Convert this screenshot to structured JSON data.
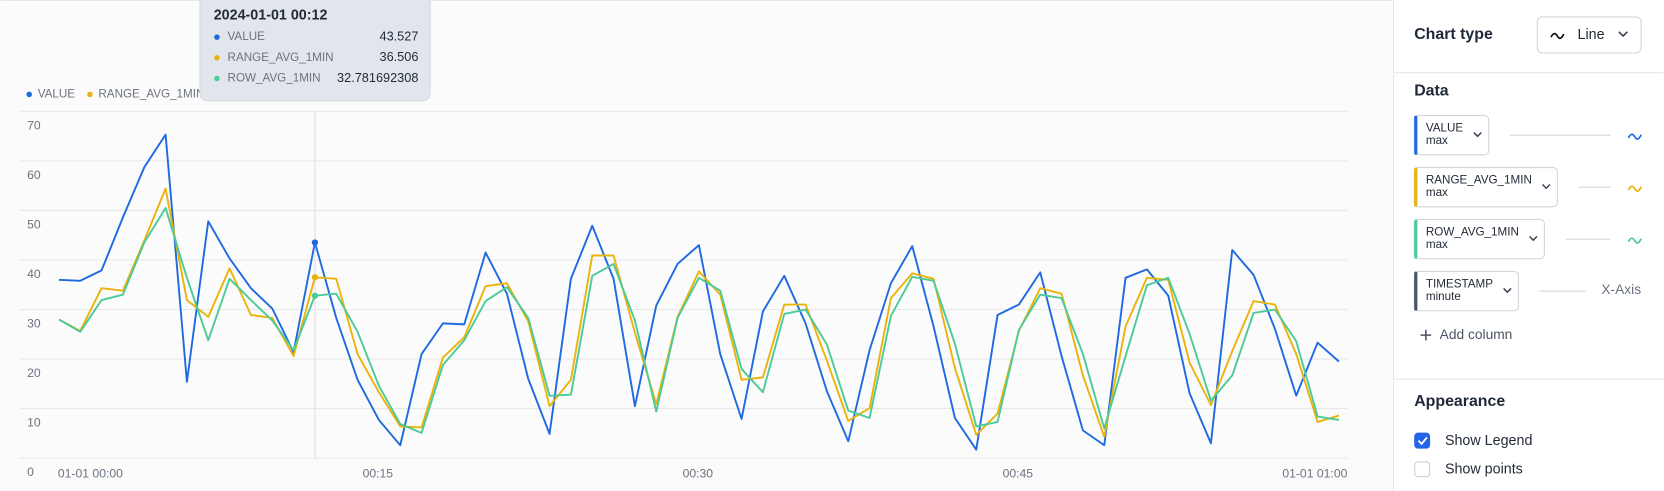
{
  "chart_data": {
    "type": "line",
    "x": [
      0,
      1,
      2,
      3,
      4,
      5,
      6,
      7,
      8,
      9,
      10,
      11,
      12,
      13,
      14,
      15,
      16,
      17,
      18,
      19,
      20,
      21,
      22,
      23,
      24,
      25,
      26,
      27,
      28,
      29,
      30,
      31,
      32,
      33,
      34,
      35,
      36,
      37,
      38,
      39,
      40,
      41,
      42,
      43,
      44,
      45,
      46,
      47,
      48,
      49,
      50,
      51,
      52,
      53,
      54,
      55,
      56,
      57,
      58,
      59,
      60
    ],
    "xlim": [
      0,
      60
    ],
    "xticks": [
      {
        "value": 0,
        "label": "01-01 00:00"
      },
      {
        "value": 15,
        "label": "00:15"
      },
      {
        "value": 30,
        "label": "00:30"
      },
      {
        "value": 45,
        "label": "00:45"
      },
      {
        "value": 60,
        "label": "01-01 01:00"
      }
    ],
    "ylim": [
      0,
      70
    ],
    "yticks": [
      0,
      10,
      20,
      30,
      40,
      50,
      60,
      70
    ],
    "grid": true,
    "legend": "top-left",
    "series": [
      {
        "name": "VALUE",
        "color": "#1f6ae0",
        "values": [
          36,
          35.8,
          37.9,
          48.6,
          58.7,
          65.3,
          15.4,
          47.8,
          40.3,
          34.3,
          30.2,
          21.4,
          43.527,
          28.3,
          15.8,
          7.7,
          2.6,
          21,
          27.2,
          27,
          41.5,
          33.2,
          16,
          4.9,
          36.2,
          46.9,
          36.2,
          10.5,
          30.8,
          39.2,
          43,
          21,
          7.9,
          29.6,
          36.8,
          27.2,
          13.5,
          3.4,
          21.8,
          35.3,
          42.8,
          26.6,
          8.1,
          1.7,
          28.9,
          31,
          37.5,
          20.6,
          5.6,
          2.6,
          36.4,
          38.1,
          32.8,
          13.1,
          3,
          42,
          37,
          26.1,
          12.6,
          23.3,
          19.5
        ]
      },
      {
        "name": "RANGE_AVG_1MIN",
        "color": "#ebb30c",
        "values": [
          28,
          25.7,
          34.3,
          33.8,
          43.9,
          54.4,
          31.9,
          28.5,
          38.3,
          28.9,
          28.3,
          20.6,
          36.506,
          36.2,
          21,
          13.3,
          6.4,
          6.2,
          20.3,
          24.4,
          34.7,
          35.3,
          27.6,
          10.5,
          15.8,
          40.9,
          40.9,
          25.3,
          10.9,
          28.5,
          37.7,
          33,
          15.8,
          16.3,
          31,
          31,
          19.7,
          7.5,
          10.1,
          32.3,
          37.3,
          36.2,
          18.2,
          4.7,
          9,
          25.7,
          34.3,
          33.2,
          16.7,
          4.3,
          26.6,
          36.4,
          36,
          19.3,
          10.7,
          21.6,
          31.7,
          31,
          21,
          7.3,
          8.6
        ]
      },
      {
        "name": "ROW_AVG_1MIN",
        "color": "#4ccb97",
        "values": [
          28,
          25.5,
          31.9,
          33,
          43.5,
          50.5,
          36.4,
          23.8,
          36.2,
          31.9,
          27.8,
          21.8,
          32.781692308,
          33.2,
          25.5,
          14.6,
          6.9,
          5.1,
          18.8,
          23.8,
          31.7,
          34.5,
          28.3,
          12.6,
          12.8,
          36.8,
          39.2,
          27.8,
          9.4,
          28.3,
          36.4,
          33.8,
          18,
          13.3,
          29.1,
          30,
          22.9,
          9.6,
          8.1,
          28.7,
          36.6,
          35.8,
          23.1,
          6.4,
          7.3,
          25.9,
          33,
          32.3,
          21,
          6,
          20.6,
          34.9,
          36.4,
          25.1,
          11.6,
          16.7,
          29.3,
          30,
          23.6,
          8.4,
          7.7
        ]
      }
    ]
  },
  "tooltip": {
    "title": "2024-01-01 00:12",
    "x": 12
  },
  "sidebar": {
    "chart_type_label": "Chart type",
    "chart_type": "Line",
    "data_heading": "Data",
    "columns": [
      {
        "name": "VALUE",
        "agg": "max",
        "color": "#1f6ae0"
      },
      {
        "name": "RANGE_AVG_1MIN",
        "agg": "max",
        "color": "#ebb30c"
      },
      {
        "name": "ROW_AVG_1MIN",
        "agg": "max",
        "color": "#4ccb97"
      },
      {
        "name": "TIMESTAMP",
        "agg": "minute",
        "color": "#4b5563",
        "role": "X-Axis"
      }
    ],
    "add_column": "Add column",
    "appearance_heading": "Appearance",
    "options": [
      {
        "label": "Show Legend",
        "checked": true
      },
      {
        "label": "Show points",
        "checked": false
      }
    ]
  }
}
